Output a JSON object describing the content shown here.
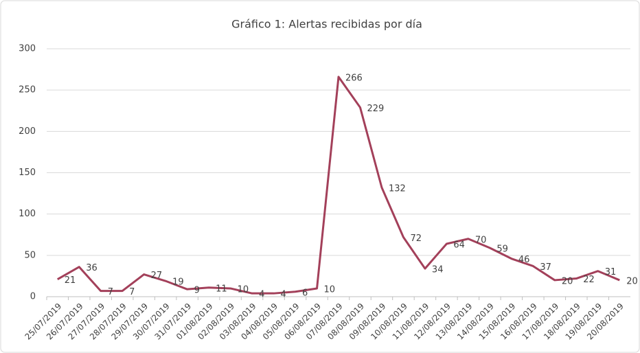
{
  "chart_data": {
    "type": "line",
    "title": "Gráfico 1: Alertas recibidas por día",
    "categories": [
      "25/07/2019",
      "26/07/2019",
      "27/07/2019",
      "28/07/2019",
      "29/07/2019",
      "30/07/2019",
      "31/07/2019",
      "01/08/2019",
      "02/08/2019",
      "03/08/2019",
      "04/08/2019",
      "05/08/2019",
      "06/08/2019",
      "07/08/2019",
      "08/08/2019",
      "09/08/2019",
      "10/08/2019",
      "11/08/2019",
      "12/08/2019",
      "13/08/2019",
      "14/08/2019",
      "15/08/2019",
      "16/08/2019",
      "17/08/2019",
      "18/08/2019",
      "19/08/2019",
      "20/08/2019"
    ],
    "values": [
      21,
      36,
      7,
      7,
      27,
      19,
      9,
      11,
      10,
      4,
      4,
      6,
      10,
      266,
      229,
      132,
      72,
      34,
      64,
      70,
      59,
      46,
      37,
      20,
      22,
      31,
      20
    ],
    "color": "#a3405a",
    "ylim": [
      0,
      300
    ],
    "yticks": [
      0,
      50,
      100,
      150,
      200,
      250,
      300
    ],
    "grid": true
  }
}
